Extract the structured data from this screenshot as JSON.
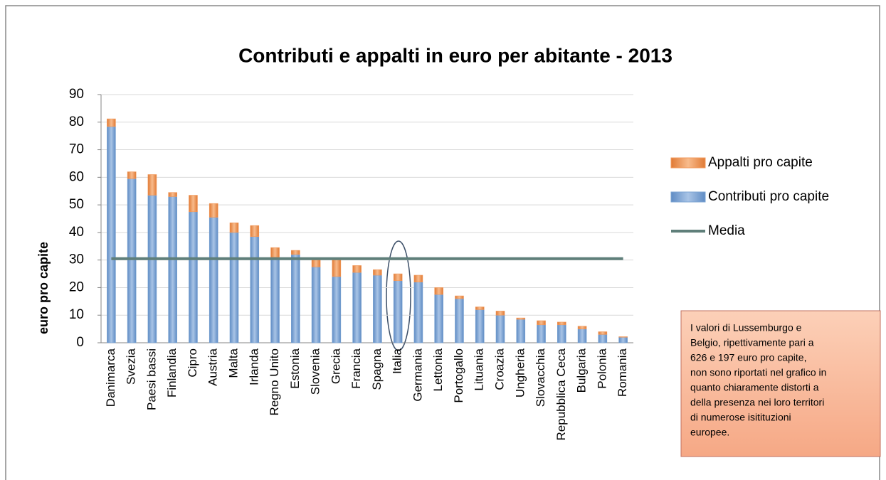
{
  "chart_data": {
    "type": "bar",
    "stacked": true,
    "title": "Contributi e appalti in euro per abitante - 2013",
    "y_label": "euro pro capite",
    "categories": [
      "Danimarca",
      "Svezia",
      "Paesi bassi",
      "Finlandia",
      "Cipro",
      "Austria",
      "Malta",
      "Irlanda",
      "Regno Unito",
      "Estonia",
      "Slovenia",
      "Grecia",
      "Francia",
      "Spagna",
      "Italia",
      "Germania",
      "Lettonia",
      "Portogallo",
      "Lituania",
      "Croazia",
      "Ungheria",
      "Slovacchia",
      "Repubblica Ceca",
      "Bulgaria",
      "Polonia",
      "Romania"
    ],
    "series": [
      {
        "name": "Contributi pro capite",
        "color": "#7aa3d2",
        "type": "bar",
        "values": [
          78.4,
          59.5,
          53.5,
          53,
          47.5,
          45.5,
          40,
          38.5,
          31,
          32,
          27.5,
          24,
          25.5,
          24.5,
          22.5,
          22,
          17.5,
          16,
          12,
          10,
          8.5,
          6.5,
          6.5,
          5,
          3,
          2
        ]
      },
      {
        "name": "Appalti pro capite",
        "color": "#f29a5c",
        "type": "bar",
        "values": [
          2.8,
          2.5,
          7.5,
          1.5,
          6,
          5,
          3.5,
          4,
          3.5,
          1.5,
          2.5,
          6,
          2.5,
          2,
          2.5,
          2.5,
          2.5,
          1,
          1,
          1.5,
          0.5,
          1.5,
          1,
          1,
          1,
          0.2
        ]
      },
      {
        "name": "Media",
        "color": "#5f7f7a",
        "type": "line",
        "values": [
          30.5,
          30.5,
          30.5,
          30.5,
          30.5,
          30.5,
          30.5,
          30.5,
          30.5,
          30.5,
          30.5,
          30.5,
          30.5,
          30.5,
          30.5,
          30.5,
          30.5,
          30.5,
          30.5,
          30.5,
          30.5,
          30.5,
          30.5,
          30.5,
          30.5,
          30.5
        ]
      }
    ],
    "ylim": [
      0,
      90
    ],
    "yticks": [
      0,
      10,
      20,
      30,
      40,
      50,
      60,
      70,
      80,
      90
    ],
    "grid": true,
    "legend": "right",
    "annotation": [
      "I valori di Lussemburgo e",
      "Belgio, ripettivamente pari a",
      "626  e  197 euro pro capite,",
      "non sono riportati nel grafico in",
      "quanto chiaramente distorti a",
      "della presenza nei loro territori",
      "di numerose isitituzioni",
      "europee."
    ]
  }
}
